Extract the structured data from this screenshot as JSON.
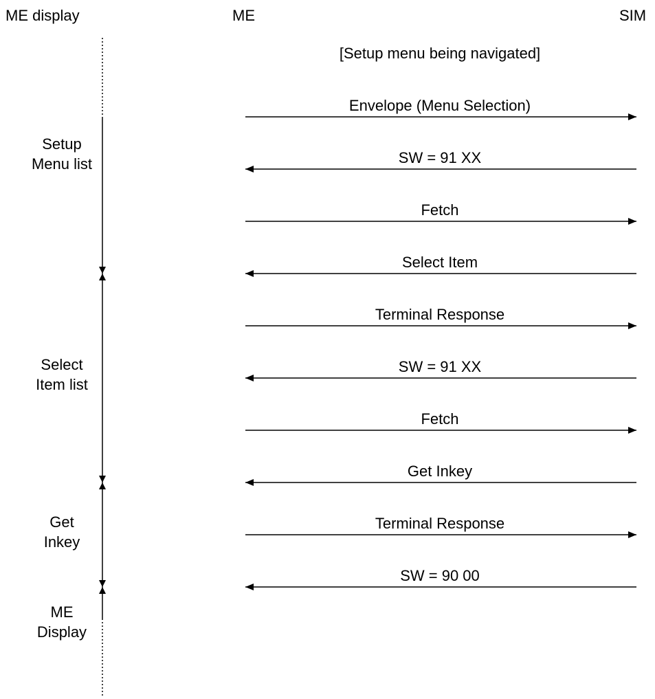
{
  "headers": {
    "me_display": "ME display",
    "me": "ME",
    "sim": "SIM"
  },
  "note": "[Setup menu being navigated]",
  "messages": [
    {
      "label": "Envelope (Menu Selection)",
      "direction": "to_sim"
    },
    {
      "label": "SW = 91 XX",
      "direction": "to_me"
    },
    {
      "label": "Fetch",
      "direction": "to_sim"
    },
    {
      "label": "Select Item",
      "direction": "to_me"
    },
    {
      "label": "Terminal Response",
      "direction": "to_sim"
    },
    {
      "label": "SW = 91 XX",
      "direction": "to_me"
    },
    {
      "label": "Fetch",
      "direction": "to_sim"
    },
    {
      "label": "Get Inkey",
      "direction": "to_me"
    },
    {
      "label": "Terminal Response",
      "direction": "to_sim"
    },
    {
      "label": "SW = 90 00",
      "direction": "to_me"
    }
  ],
  "phases": [
    {
      "line1": "Setup",
      "line2": "Menu list"
    },
    {
      "line1": "Select",
      "line2": "Item list"
    },
    {
      "line1": "Get",
      "line2": "Inkey"
    },
    {
      "line1": "ME",
      "line2": "Display"
    }
  ]
}
